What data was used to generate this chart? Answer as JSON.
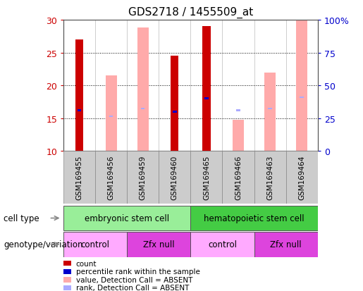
{
  "title": "GDS2718 / 1455509_at",
  "samples": [
    "GSM169455",
    "GSM169456",
    "GSM169459",
    "GSM169460",
    "GSM169465",
    "GSM169466",
    "GSM169463",
    "GSM169464"
  ],
  "ylim_left": [
    10,
    30
  ],
  "ylim_right": [
    0,
    100
  ],
  "yticks_left": [
    10,
    15,
    20,
    25,
    30
  ],
  "yticks_right": [
    0,
    25,
    50,
    75,
    100
  ],
  "ytick_labels_right": [
    "0",
    "25",
    "50",
    "75",
    "100%"
  ],
  "count_bars": [
    27,
    0,
    0,
    24.5,
    29,
    0,
    0,
    0
  ],
  "count_color": "#cc0000",
  "percentile_rank_bars": [
    16.2,
    0,
    0,
    16.0,
    18.0,
    0,
    0,
    0
  ],
  "percentile_rank_color": "#0000cc",
  "value_absent_bars": [
    0,
    21.5,
    28.8,
    0,
    0,
    14.7,
    22.0,
    30.0
  ],
  "value_absent_color": "#ffaaaa",
  "rank_absent_bars": [
    0,
    15.3,
    16.5,
    0,
    0,
    16.2,
    16.5,
    18.2
  ],
  "rank_absent_color": "#aaaaff",
  "cell_type_groups": [
    {
      "label": "embryonic stem cell",
      "start": 0,
      "end": 4,
      "color": "#99ee99"
    },
    {
      "label": "hematopoietic stem cell",
      "start": 4,
      "end": 8,
      "color": "#44cc44"
    }
  ],
  "genotype_groups": [
    {
      "label": "control",
      "start": 0,
      "end": 2,
      "color": "#ffaaff"
    },
    {
      "label": "Zfx null",
      "start": 2,
      "end": 4,
      "color": "#dd44dd"
    },
    {
      "label": "control",
      "start": 4,
      "end": 6,
      "color": "#ffaaff"
    },
    {
      "label": "Zfx null",
      "start": 6,
      "end": 8,
      "color": "#dd44dd"
    }
  ],
  "count_bar_width": 0.25,
  "absent_bar_width": 0.35,
  "rank_bar_height": 0.25,
  "rank_bar_width": 0.12,
  "percentile_bar_height": 0.3,
  "percentile_bar_width": 0.12,
  "background_color": "#ffffff",
  "plot_bg_color": "#ffffff",
  "left_tick_color": "#cc0000",
  "right_tick_color": "#0000cc",
  "legend_items": [
    {
      "label": "count",
      "color": "#cc0000"
    },
    {
      "label": "percentile rank within the sample",
      "color": "#0000cc"
    },
    {
      "label": "value, Detection Call = ABSENT",
      "color": "#ffaaaa"
    },
    {
      "label": "rank, Detection Call = ABSENT",
      "color": "#aaaaff"
    }
  ],
  "sample_box_color": "#cccccc",
  "arrow_color": "#888888"
}
